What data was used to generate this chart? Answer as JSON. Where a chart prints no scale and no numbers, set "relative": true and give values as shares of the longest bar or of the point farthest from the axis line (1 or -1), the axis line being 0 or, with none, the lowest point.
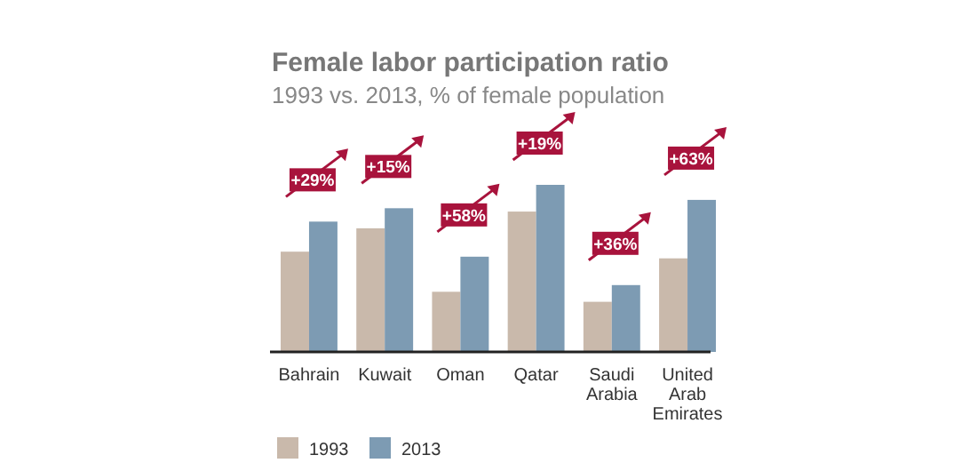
{
  "chart_data": {
    "type": "bar",
    "title": "Female labor participation ratio",
    "subtitle": "1993 vs. 2013, % of female population",
    "relative": true,
    "legend": "bottom",
    "categories": [
      "Bahrain",
      "Kuwait",
      "Oman",
      "Qatar",
      "Saudi Arabia",
      "United Arab Emirates"
    ],
    "series": [
      {
        "name": "1993",
        "color": "#c9b9ab",
        "values": [
          0.6,
          0.74,
          0.36,
          0.84,
          0.3,
          0.56
        ]
      },
      {
        "name": "2013",
        "color": "#7d9bb3",
        "values": [
          0.78,
          0.86,
          0.57,
          1,
          0.4,
          0.91
        ]
      }
    ],
    "annotations": [
      {
        "text": "+29%",
        "x": "Bahrain",
        "y": 0.78
      },
      {
        "text": "+15%",
        "x": "Kuwait",
        "y": 0.86
      },
      {
        "text": "+58%",
        "x": "Oman",
        "y": 0.57
      },
      {
        "text": "+19%",
        "x": "Qatar",
        "y": 1
      },
      {
        "text": "+36%",
        "x": "Saudi Arabia",
        "y": 0.4
      },
      {
        "text": "+63%",
        "x": "United Arab Emirates",
        "y": 0.91
      }
    ]
  }
}
